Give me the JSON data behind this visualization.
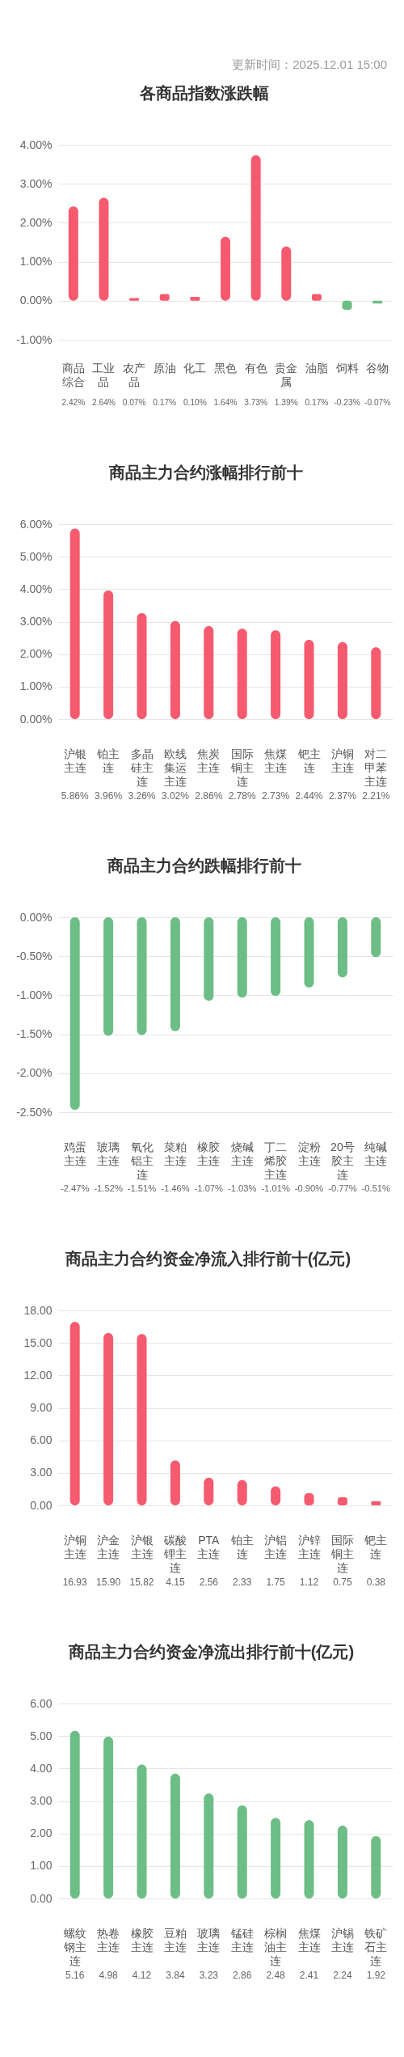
{
  "chart_data": [
    {
      "type": "bar",
      "title": "各商品指数涨跌幅",
      "annotations": [
        "更新时间：2025.12.01 15:00"
      ],
      "categories": [
        "商品综合",
        "工业品",
        "农产品",
        "原油",
        "化工",
        "黑色",
        "有色",
        "贵金属",
        "油脂",
        "饲料",
        "谷物"
      ],
      "values": [
        2.42,
        2.64,
        0.07,
        0.17,
        0.1,
        1.64,
        3.73,
        1.39,
        0.17,
        -0.23,
        -0.07
      ],
      "value_labels": [
        "2.42%",
        "2.64%",
        "0.07%",
        "0.17%",
        "0.10%",
        "1.64%",
        "3.73%",
        "1.39%",
        "0.17%",
        "-0.23%",
        "-0.07%"
      ],
      "colors": [
        "#f65a6e",
        "#f65a6e",
        "#f65a6e",
        "#f65a6e",
        "#f65a6e",
        "#f65a6e",
        "#f65a6e",
        "#f65a6e",
        "#f65a6e",
        "#6dbd86",
        "#6dbd86"
      ],
      "ylim": [
        -1,
        4
      ],
      "yticks": [
        {
          "value": -1,
          "label": "-1.00%"
        },
        {
          "value": 0,
          "label": "0.00%"
        },
        {
          "value": 1,
          "label": "1.00%"
        },
        {
          "value": 2,
          "label": "2.00%"
        },
        {
          "value": 3,
          "label": "3.00%"
        },
        {
          "value": 4,
          "label": "4.00%"
        }
      ],
      "grid": "y"
    },
    {
      "type": "bar",
      "title": "商品主力合约涨幅排行前十",
      "categories": [
        "沪银主连",
        "铂主连",
        "多晶硅主连",
        "欧线集运主连",
        "焦炭主连",
        "国际铜主连",
        "焦煤主连",
        "钯主连",
        "沪铜主连",
        "对二甲苯主连"
      ],
      "values": [
        5.86,
        3.96,
        3.26,
        3.02,
        2.86,
        2.78,
        2.73,
        2.44,
        2.37,
        2.21
      ],
      "value_labels": [
        "5.86%",
        "3.96%",
        "3.26%",
        "3.02%",
        "2.86%",
        "2.78%",
        "2.73%",
        "2.44%",
        "2.37%",
        "2.21%"
      ],
      "color": "#f65a6e",
      "ylim": [
        0,
        6
      ],
      "yticks": [
        {
          "value": 0,
          "label": "0.00%"
        },
        {
          "value": 1,
          "label": "1.00%"
        },
        {
          "value": 2,
          "label": "2.00%"
        },
        {
          "value": 3,
          "label": "3.00%"
        },
        {
          "value": 4,
          "label": "4.00%"
        },
        {
          "value": 5,
          "label": "5.00%"
        },
        {
          "value": 6,
          "label": "6.00%"
        }
      ],
      "grid": "y"
    },
    {
      "type": "bar",
      "title": "商品主力合约跌幅排行前十",
      "categories": [
        "鸡蛋主连",
        "玻璃主连",
        "氧化铝主连",
        "菜粕主连",
        "橡胶主连",
        "烧碱主连",
        "丁二烯胶主连",
        "淀粉主连",
        "20号胶主连",
        "纯碱主连"
      ],
      "values": [
        -2.47,
        -1.52,
        -1.51,
        -1.46,
        -1.07,
        -1.03,
        -1.01,
        -0.9,
        -0.77,
        -0.51
      ],
      "value_labels": [
        "-2.47%",
        "-1.52%",
        "-1.51%",
        "-1.46%",
        "-1.07%",
        "-1.03%",
        "-1.01%",
        "-0.90%",
        "-0.77%",
        "-0.51%"
      ],
      "color": "#6dbd86",
      "ylim": [
        -2.5,
        0
      ],
      "yticks": [
        {
          "value": -2.5,
          "label": "-2.50%"
        },
        {
          "value": -2,
          "label": "-2.00%"
        },
        {
          "value": -1.5,
          "label": "-1.50%"
        },
        {
          "value": -1,
          "label": "-1.00%"
        },
        {
          "value": -0.5,
          "label": "-0.50%"
        },
        {
          "value": 0,
          "label": "0.00%"
        }
      ],
      "grid": "y"
    },
    {
      "type": "bar",
      "title": "商品主力合约资金净流入排行前十(亿元)",
      "categories": [
        "沪铜主连",
        "沪金主连",
        "沪银主连",
        "碳酸锂主连",
        "PTA主连",
        "铂主连",
        "沪铝主连",
        "沪锌主连",
        "国际铜主连",
        "钯主连"
      ],
      "values": [
        16.93,
        15.9,
        15.82,
        4.15,
        2.56,
        2.33,
        1.75,
        1.12,
        0.75,
        0.38
      ],
      "value_labels": [
        "16.93",
        "15.90",
        "15.82",
        "4.15",
        "2.56",
        "2.33",
        "1.75",
        "1.12",
        "0.75",
        "0.38"
      ],
      "color": "#f65a6e",
      "ylim": [
        0,
        18
      ],
      "yticks": [
        {
          "value": 0,
          "label": "0.00"
        },
        {
          "value": 3,
          "label": "3.00"
        },
        {
          "value": 6,
          "label": "6.00"
        },
        {
          "value": 9,
          "label": "9.00"
        },
        {
          "value": 12,
          "label": "12.00"
        },
        {
          "value": 15,
          "label": "15.00"
        },
        {
          "value": 18,
          "label": "18.00"
        }
      ],
      "grid": "y"
    },
    {
      "type": "bar",
      "title": "商品主力合约资金净流出排行前十(亿元)",
      "categories": [
        "螺纹钢主连",
        "热卷主连",
        "橡胶主连",
        "豆粕主连",
        "玻璃主连",
        "锰硅主连",
        "棕榈油主连",
        "焦煤主连",
        "沪锡主连",
        "铁矿石主连"
      ],
      "values": [
        5.16,
        4.98,
        4.12,
        3.84,
        3.23,
        2.86,
        2.48,
        2.41,
        2.24,
        1.92
      ],
      "value_labels": [
        "5.16",
        "4.98",
        "4.12",
        "3.84",
        "3.23",
        "2.86",
        "2.48",
        "2.41",
        "2.24",
        "1.92"
      ],
      "color": "#6dbd86",
      "ylim": [
        0,
        6
      ],
      "yticks": [
        {
          "value": 0,
          "label": "0.00"
        },
        {
          "value": 1,
          "label": "1.00"
        },
        {
          "value": 2,
          "label": "2.00"
        },
        {
          "value": 3,
          "label": "3.00"
        },
        {
          "value": 4,
          "label": "4.00"
        },
        {
          "value": 5,
          "label": "5.00"
        },
        {
          "value": 6,
          "label": "6.00"
        }
      ],
      "grid": "y"
    }
  ]
}
